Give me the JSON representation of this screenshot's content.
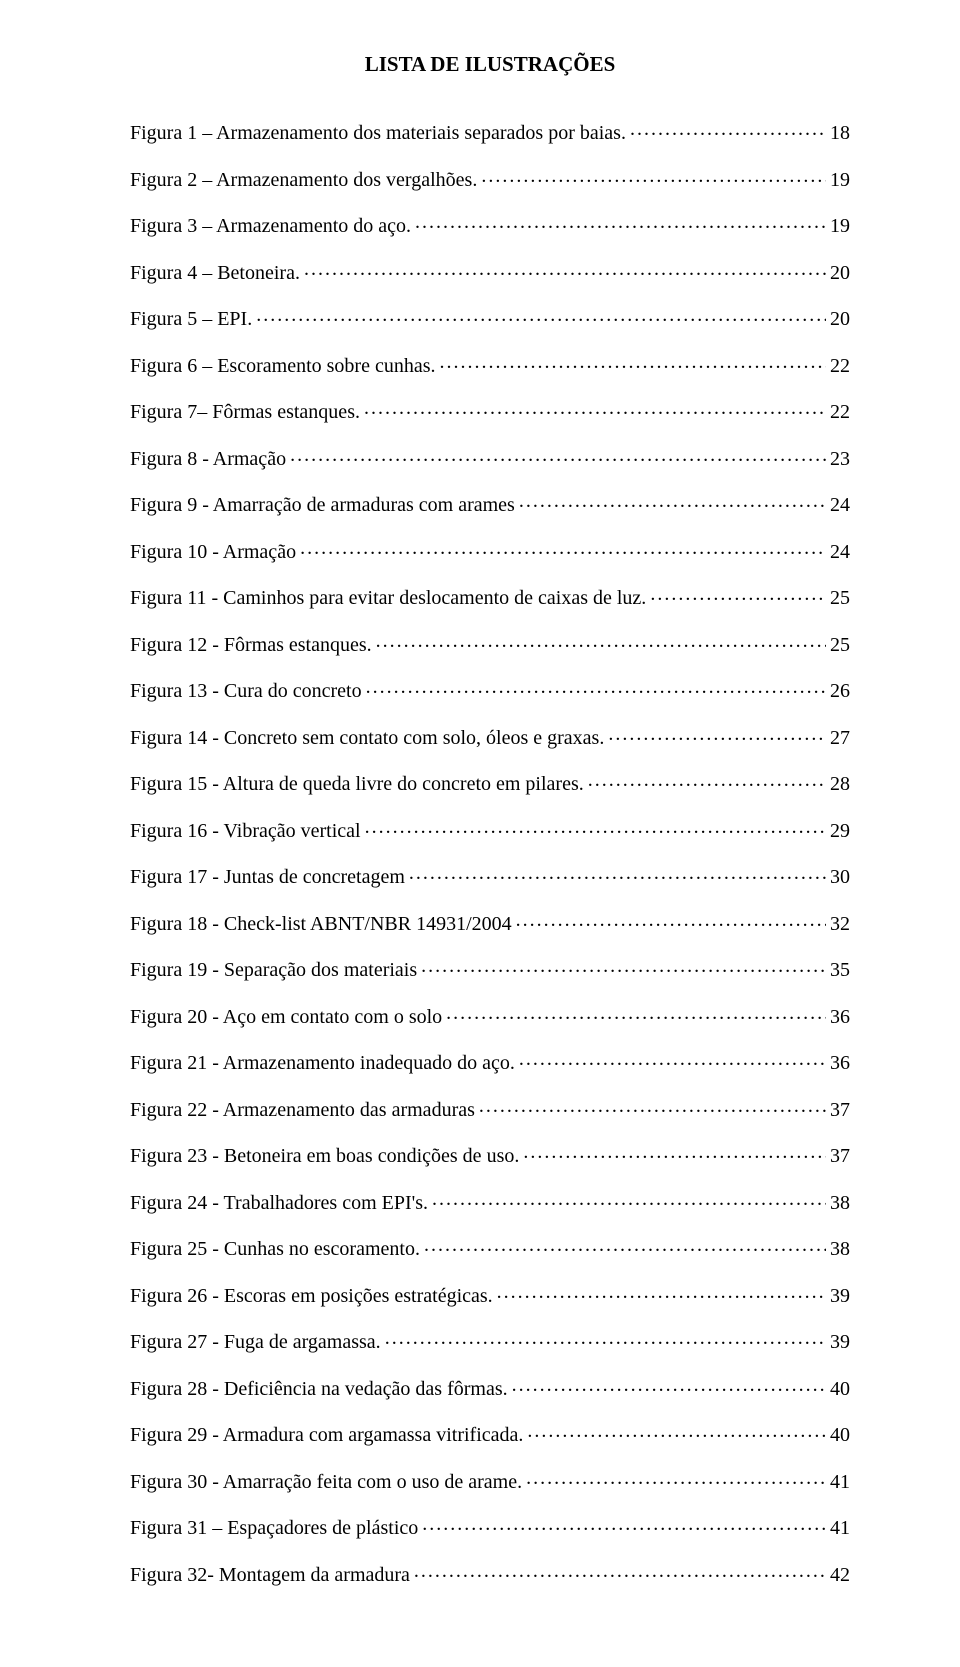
{
  "title": "LISTA DE ILUSTRAÇÕES",
  "text_color": "#000000",
  "background_color": "#ffffff",
  "font_family": "Times New Roman",
  "title_fontsize": 21,
  "entry_fontsize": 20,
  "entries": [
    {
      "label": "Figura 1 – Armazenamento dos materiais separados por baias.",
      "page": "18"
    },
    {
      "label": "Figura 2 – Armazenamento dos vergalhões.",
      "page": "19"
    },
    {
      "label": "Figura 3 – Armazenamento do aço.",
      "page": "19"
    },
    {
      "label": "Figura 4 – Betoneira.",
      "page": "20"
    },
    {
      "label": "Figura 5 – EPI.",
      "page": "20"
    },
    {
      "label": "Figura 6 – Escoramento sobre cunhas.",
      "page": "22"
    },
    {
      "label": "Figura 7– Fôrmas estanques.",
      "page": "22"
    },
    {
      "label": "Figura 8 - Armação",
      "page": "23"
    },
    {
      "label": "Figura 9 - Amarração de armaduras com arames",
      "page": "24"
    },
    {
      "label": "Figura 10 - Armação",
      "page": "24"
    },
    {
      "label": "Figura 11 - Caminhos para evitar deslocamento de caixas de luz.",
      "page": "25"
    },
    {
      "label": "Figura 12 - Fôrmas estanques.",
      "page": "25"
    },
    {
      "label": "Figura 13 - Cura do concreto",
      "page": "26"
    },
    {
      "label": "Figura 14 - Concreto sem contato com solo, óleos e graxas.",
      "page": "27"
    },
    {
      "label": "Figura 15 - Altura de queda livre do concreto em pilares.",
      "page": "28"
    },
    {
      "label": "Figura 16 - Vibração vertical",
      "page": "29"
    },
    {
      "label": "Figura 17 - Juntas de concretagem",
      "page": "30"
    },
    {
      "label": "Figura 18 - Check-list ABNT/NBR 14931/2004",
      "page": "32"
    },
    {
      "label": "Figura 19 - Separação dos materiais",
      "page": "35"
    },
    {
      "label": "Figura 20 - Aço em contato com o solo",
      "page": "36"
    },
    {
      "label": "Figura 21 - Armazenamento inadequado do aço.",
      "page": "36"
    },
    {
      "label": "Figura 22 - Armazenamento das armaduras",
      "page": "37"
    },
    {
      "label": "Figura 23 - Betoneira em boas condições de uso.",
      "page": "37"
    },
    {
      "label": "Figura 24 - Trabalhadores com EPI's.",
      "page": "38"
    },
    {
      "label": "Figura 25 - Cunhas no escoramento.",
      "page": "38"
    },
    {
      "label": "Figura 26 - Escoras em posições estratégicas.",
      "page": "39"
    },
    {
      "label": "Figura 27 - Fuga de argamassa.",
      "page": "39"
    },
    {
      "label": "Figura 28 - Deficiência na vedação das fôrmas.",
      "page": "40"
    },
    {
      "label": "Figura 29 - Armadura com argamassa vitrificada.",
      "page": "40"
    },
    {
      "label": "Figura 30 - Amarração feita com o uso de arame.",
      "page": "41"
    },
    {
      "label": "Figura 31 – Espaçadores de plástico",
      "page": "41"
    },
    {
      "label": "Figura 32- Montagem da armadura",
      "page": "42"
    }
  ]
}
